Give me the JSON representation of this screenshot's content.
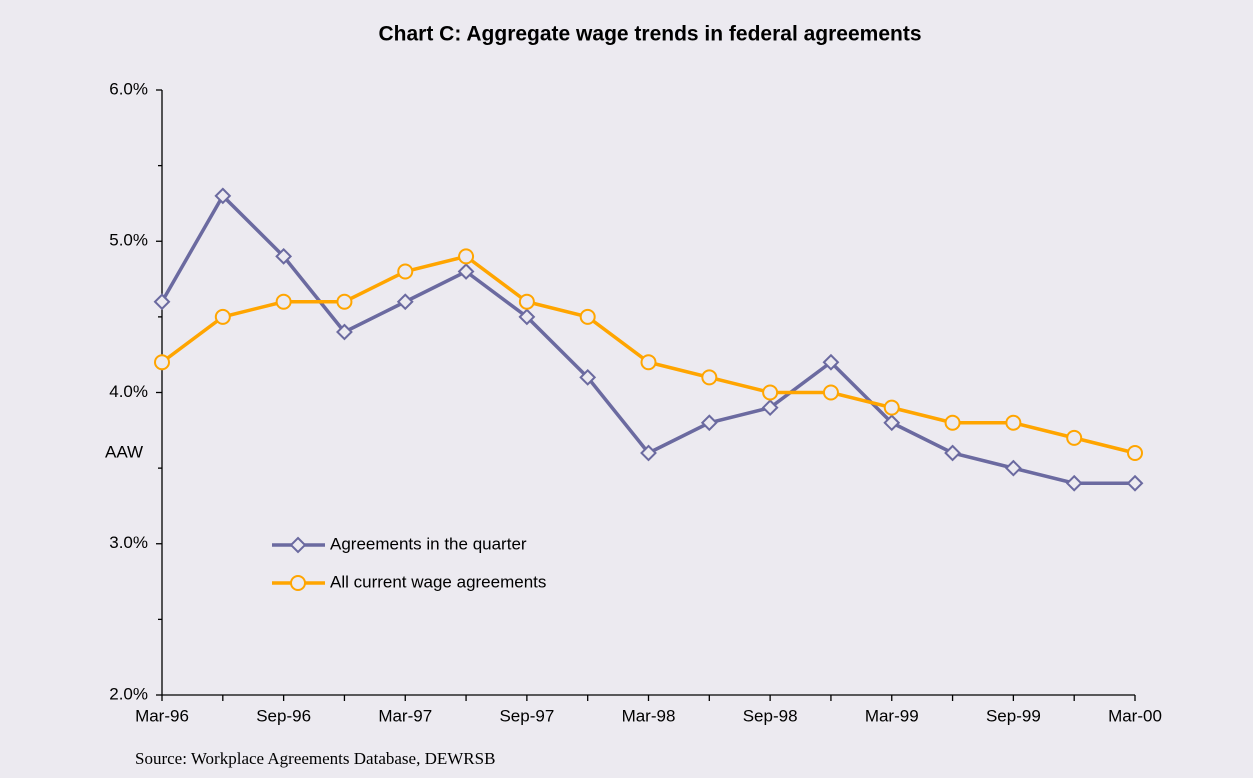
{
  "chart_data": {
    "type": "line",
    "title": "Chart C: Aggregate wage trends in federal agreements",
    "y_label": "AAW",
    "source": "Source: Workplace Agreements Database, DEWRSB",
    "categories": [
      "Mar-96",
      null,
      "Sep-96",
      null,
      "Mar-97",
      null,
      "Sep-97",
      null,
      "Mar-98",
      null,
      "Sep-98",
      null,
      "Mar-99",
      null,
      "Sep-99",
      null,
      "Mar-00"
    ],
    "series": [
      {
        "name": "Agreements in the quarter",
        "color": "#6b6aa0",
        "marker": "diamond",
        "values": [
          4.6,
          5.3,
          4.9,
          4.4,
          4.6,
          4.8,
          4.5,
          4.1,
          3.6,
          3.8,
          3.9,
          4.2,
          3.8,
          3.6,
          3.5,
          3.4,
          3.4
        ]
      },
      {
        "name": "All current wage agreements",
        "color": "#ffa500",
        "marker": "circle",
        "values": [
          4.2,
          4.5,
          4.6,
          4.6,
          4.8,
          4.9,
          4.6,
          4.5,
          4.2,
          4.1,
          4.0,
          4.0,
          3.9,
          3.8,
          3.8,
          3.7,
          3.6
        ]
      }
    ],
    "ylim": [
      2,
      6
    ],
    "yticks": [
      {
        "value": 2,
        "label": "2.0%"
      },
      {
        "value": 3,
        "label": "3.0%"
      },
      {
        "value": 4,
        "label": "4.0%"
      },
      {
        "value": 5,
        "label": "5.0%"
      },
      {
        "value": 6,
        "label": "6.0%"
      }
    ],
    "yticks_minor": [
      2.5,
      3.5,
      4.5,
      5.5
    ],
    "grid": false,
    "legend": "inside"
  }
}
